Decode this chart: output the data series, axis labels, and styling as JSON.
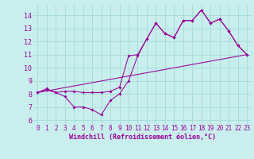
{
  "xlabel": "Windchill (Refroidissement éolien,°C)",
  "bg_color": "#c8eeee",
  "grid_color": "#aadddd",
  "line_color": "#990099",
  "xlim": [
    -0.5,
    23.5
  ],
  "ylim": [
    5.7,
    14.8
  ],
  "xticks": [
    0,
    1,
    2,
    3,
    4,
    5,
    6,
    7,
    8,
    9,
    10,
    11,
    12,
    13,
    14,
    15,
    16,
    17,
    18,
    19,
    20,
    21,
    22,
    23
  ],
  "yticks": [
    6,
    7,
    8,
    9,
    10,
    11,
    12,
    13,
    14
  ],
  "line1_x": [
    0,
    1,
    2,
    3,
    4,
    5,
    6,
    7,
    8,
    9,
    10,
    11,
    12,
    13,
    14,
    15,
    16,
    17,
    18,
    19,
    20,
    21,
    22,
    23
  ],
  "line1_y": [
    8.1,
    8.4,
    8.1,
    7.8,
    7.0,
    7.0,
    6.8,
    6.4,
    7.5,
    8.0,
    9.0,
    10.9,
    12.2,
    13.4,
    12.6,
    12.3,
    13.6,
    13.6,
    14.4,
    13.4,
    13.7,
    12.8,
    11.7,
    11.0
  ],
  "line2_x": [
    0,
    23
  ],
  "line2_y": [
    8.1,
    11.0
  ],
  "line3_x": [
    0,
    1,
    2,
    3,
    4,
    5,
    6,
    7,
    8,
    9,
    10,
    11,
    12,
    13,
    14,
    15,
    16,
    17,
    18,
    19,
    20,
    21,
    22,
    23
  ],
  "line3_y": [
    8.1,
    8.3,
    8.1,
    8.2,
    8.2,
    8.1,
    8.1,
    8.1,
    8.2,
    8.5,
    10.9,
    11.0,
    12.2,
    13.4,
    12.6,
    12.3,
    13.6,
    13.6,
    14.4,
    13.4,
    13.7,
    12.8,
    11.7,
    11.0
  ]
}
